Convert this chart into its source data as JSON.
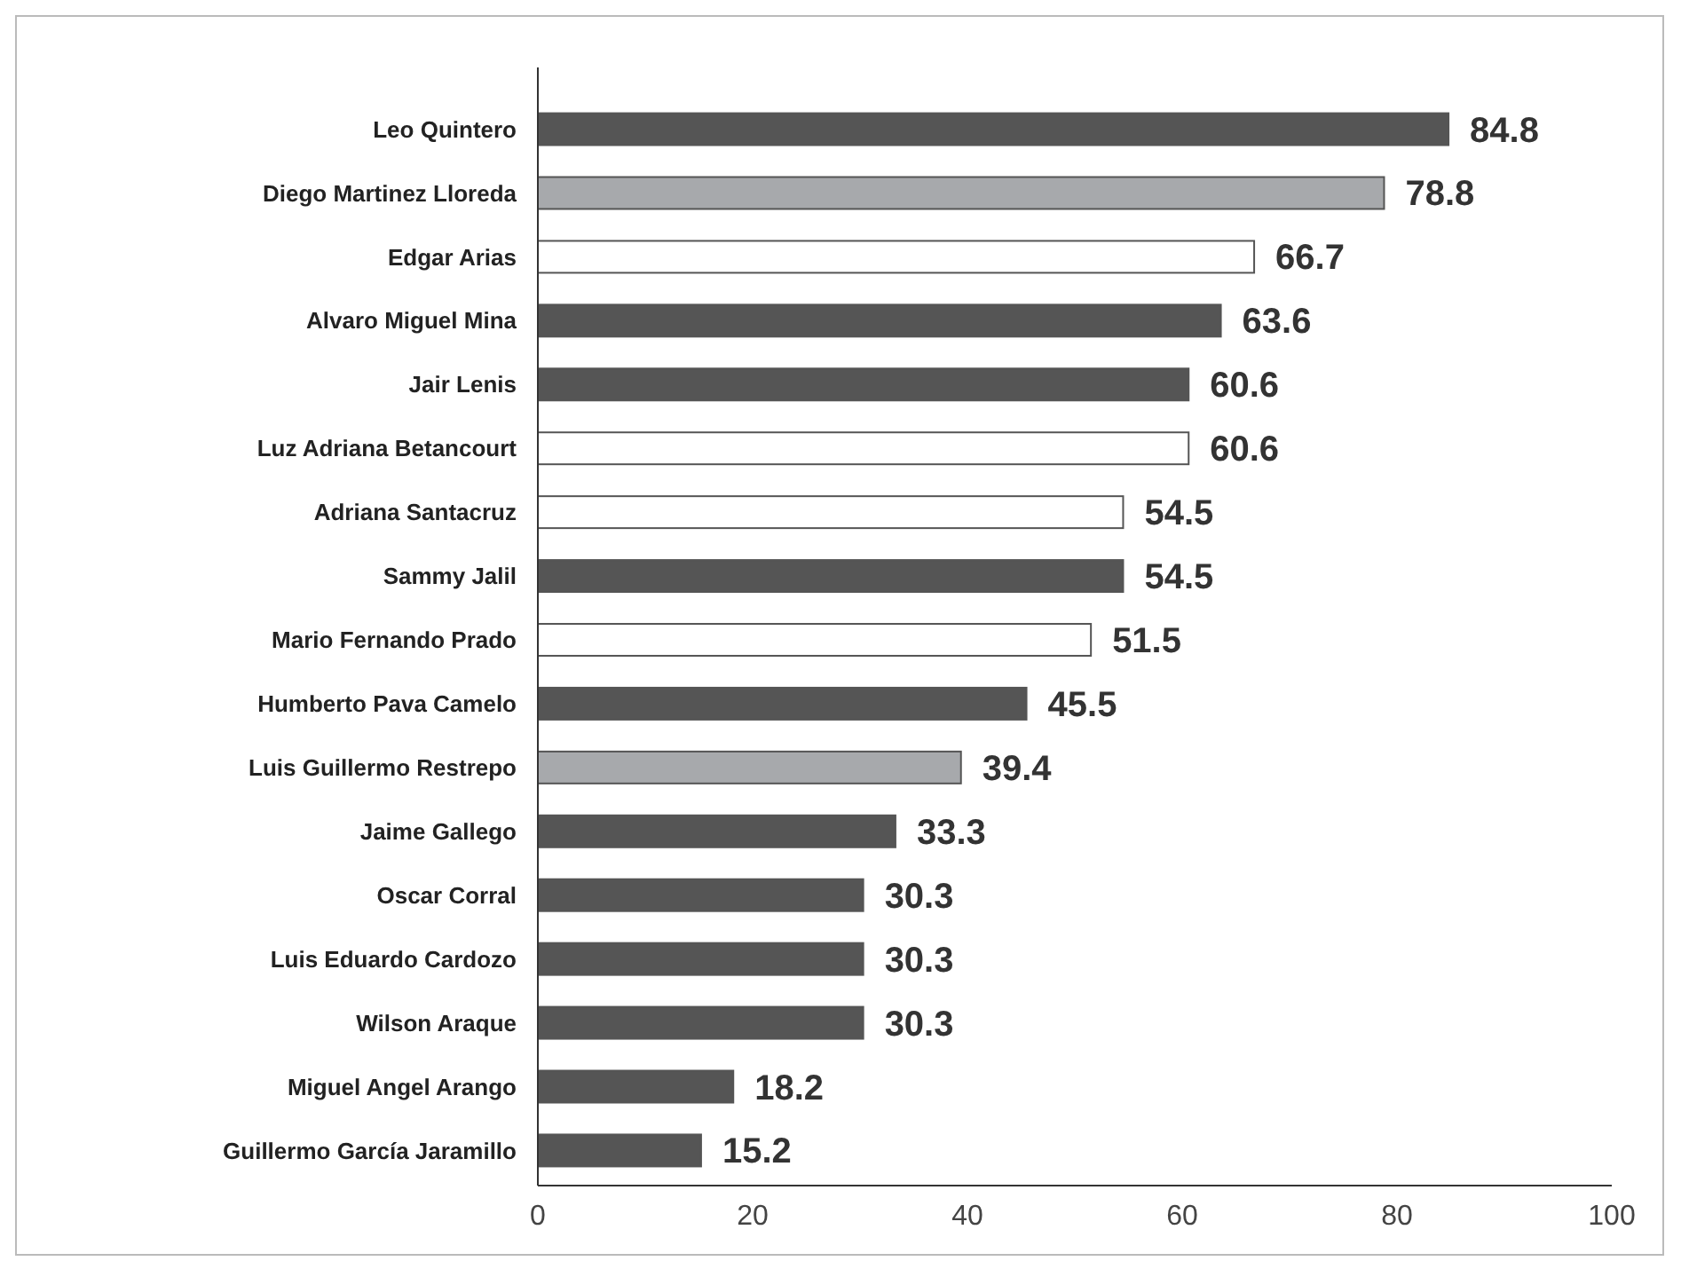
{
  "chart_data": {
    "type": "bar",
    "orientation": "horizontal",
    "categories": [
      "Leo Quintero",
      "Diego Martinez Lloreda",
      "Edgar Arias",
      "Alvaro Miguel Mina",
      "Jair Lenis",
      "Luz Adriana Betancourt",
      "Adriana Santacruz",
      "Sammy Jalil",
      "Mario Fernando Prado",
      "Humberto Pava Camelo",
      "Luis Guillermo Restrepo",
      "Jaime Gallego",
      "Oscar Corral",
      "Luis Eduardo Cardozo",
      "Wilson Araque",
      "Miguel Angel Arango",
      "Guillermo García Jaramillo"
    ],
    "values": [
      84.8,
      78.8,
      66.7,
      63.6,
      60.6,
      60.6,
      54.5,
      54.5,
      51.5,
      45.5,
      39.4,
      33.3,
      30.3,
      30.3,
      30.3,
      18.2,
      15.2
    ],
    "colors": [
      "#555555",
      "#a7a9ac",
      "#ffffff",
      "#555555",
      "#555555",
      "#ffffff",
      "#ffffff",
      "#555555",
      "#ffffff",
      "#555555",
      "#a7a9ac",
      "#555555",
      "#555555",
      "#555555",
      "#555555",
      "#555555",
      "#555555"
    ],
    "xlim": [
      0,
      100
    ],
    "xticks": [
      0,
      20,
      40,
      60,
      80,
      100
    ],
    "data_labels": true
  }
}
